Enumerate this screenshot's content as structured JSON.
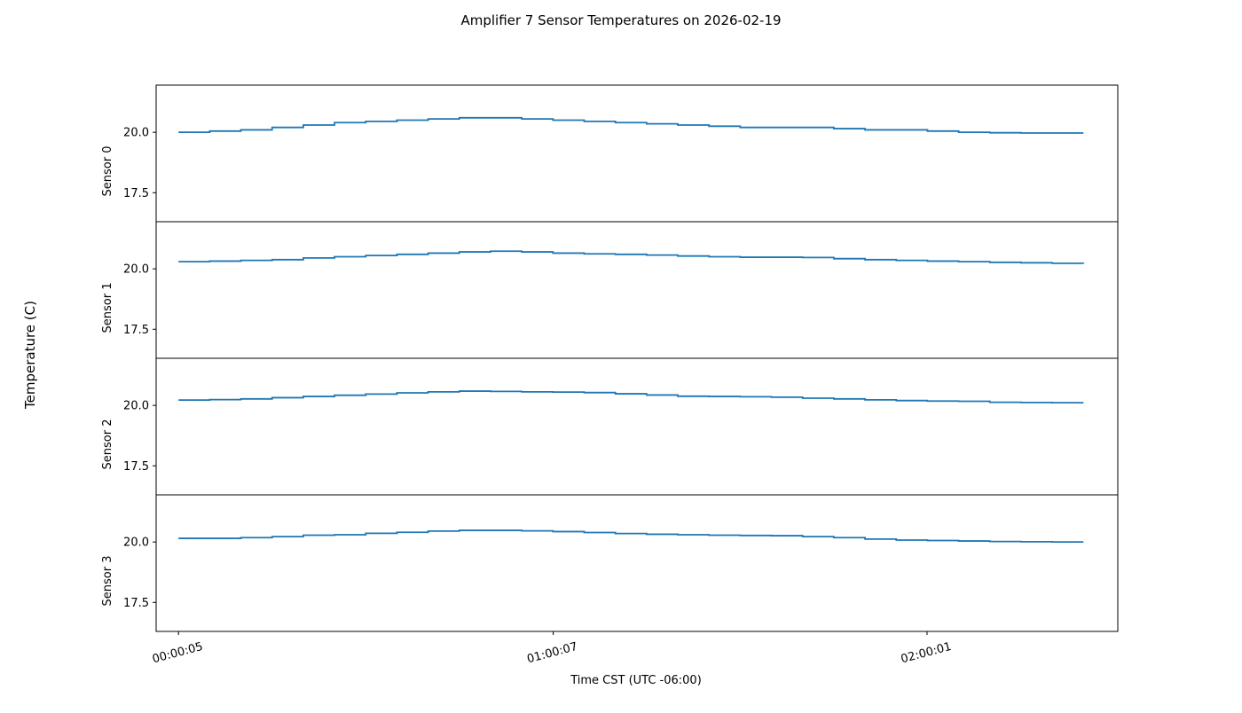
{
  "chart_data": {
    "type": "line",
    "title": "Amplifier 7 Sensor Temperatures on 2026-02-19",
    "xlabel": "Time CST (UTC -06:00)",
    "ylabel": "Temperature (C)",
    "x_ticks": [
      "00:00:05",
      "01:00:07",
      "02:00:01"
    ],
    "y_ticks": [
      "17.5",
      "20.0"
    ],
    "ylim": [
      16.3,
      21.95
    ],
    "xlim": [
      "23:56:30",
      "02:30:35"
    ],
    "grid": false,
    "line_color": "#1f77b4",
    "x": [
      "00:00:05",
      "00:05:05",
      "00:10:05",
      "00:15:05",
      "00:20:05",
      "00:25:05",
      "00:30:05",
      "00:35:05",
      "00:40:05",
      "00:45:05",
      "00:50:05",
      "00:55:05",
      "01:00:05",
      "01:05:05",
      "01:10:05",
      "01:15:05",
      "01:20:05",
      "01:25:05",
      "01:30:05",
      "01:35:05",
      "01:40:05",
      "01:45:05",
      "01:50:05",
      "01:55:05",
      "02:00:05",
      "02:05:05",
      "02:10:05",
      "02:15:05",
      "02:20:05",
      "02:25:05"
    ],
    "series": [
      {
        "name": "Sensor 0",
        "values": [
          20.0,
          20.05,
          20.1,
          20.2,
          20.3,
          20.4,
          20.45,
          20.5,
          20.55,
          20.6,
          20.6,
          20.55,
          20.5,
          20.45,
          20.4,
          20.35,
          20.3,
          20.25,
          20.2,
          20.2,
          20.2,
          20.15,
          20.1,
          20.1,
          20.05,
          20.0,
          19.98,
          19.97,
          19.97,
          19.97
        ]
      },
      {
        "name": "Sensor 1",
        "values": [
          20.3,
          20.32,
          20.35,
          20.38,
          20.45,
          20.5,
          20.55,
          20.6,
          20.65,
          20.7,
          20.73,
          20.7,
          20.65,
          20.62,
          20.6,
          20.57,
          20.53,
          20.5,
          20.48,
          20.48,
          20.47,
          20.42,
          20.38,
          20.35,
          20.32,
          20.3,
          20.27,
          20.25,
          20.23,
          20.22
        ]
      },
      {
        "name": "Sensor 2",
        "values": [
          20.22,
          20.24,
          20.27,
          20.32,
          20.37,
          20.42,
          20.47,
          20.52,
          20.56,
          20.59,
          20.58,
          20.56,
          20.55,
          20.53,
          20.48,
          20.43,
          20.38,
          20.37,
          20.36,
          20.34,
          20.3,
          20.27,
          20.23,
          20.2,
          20.18,
          20.17,
          20.13,
          20.12,
          20.11,
          20.11
        ]
      },
      {
        "name": "Sensor 3",
        "values": [
          20.15,
          20.15,
          20.18,
          20.22,
          20.28,
          20.3,
          20.36,
          20.4,
          20.45,
          20.48,
          20.48,
          20.46,
          20.43,
          20.39,
          20.35,
          20.32,
          20.3,
          20.28,
          20.27,
          20.26,
          20.22,
          20.18,
          20.12,
          20.08,
          20.06,
          20.04,
          20.02,
          20.01,
          20.0,
          20.0
        ]
      }
    ]
  }
}
